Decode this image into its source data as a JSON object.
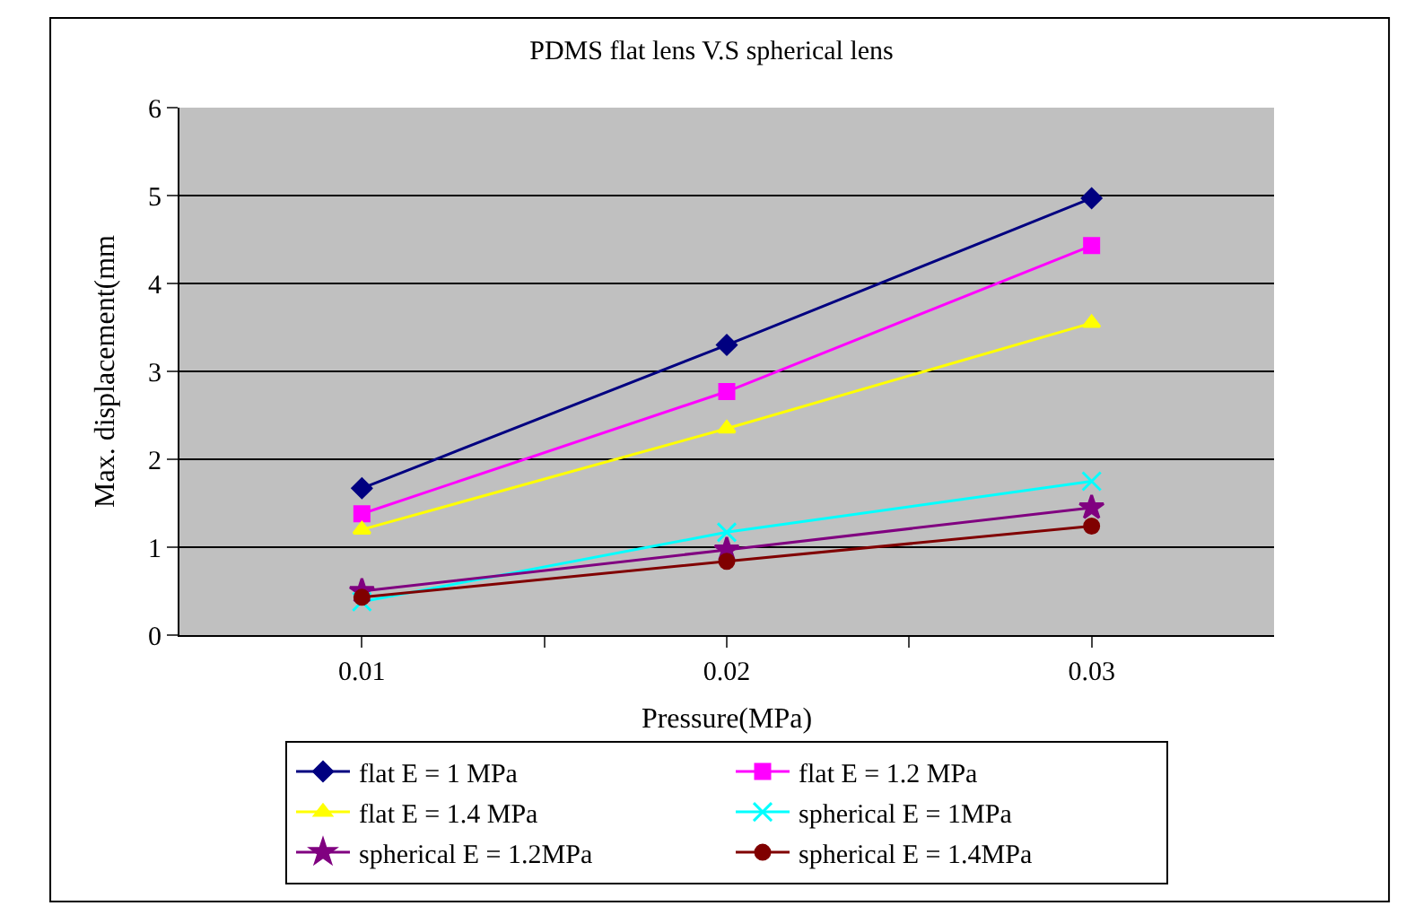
{
  "chart_data": {
    "type": "line",
    "title": "PDMS flat lens V.S spherical lens",
    "xlabel": "Pressure(MPa)",
    "ylabel": "Max. displacement(mm",
    "x": [
      0.01,
      0.02,
      0.03
    ],
    "xlim": [
      0.005,
      0.035
    ],
    "xticks": [
      0.01,
      {
        "value": 0.015,
        "label": null
      },
      0.02,
      {
        "value": 0.025,
        "label": null
      },
      0.03
    ],
    "ylim": [
      0,
      6
    ],
    "yticks": [
      0,
      1,
      2,
      3,
      4,
      5,
      6
    ],
    "grid": "y",
    "legend": "bottom",
    "line_style": "solid",
    "series": [
      {
        "name": "flat E = 1 MPa",
        "color": "#000080",
        "marker": "diamond",
        "values": [
          1.67,
          3.3,
          4.97
        ]
      },
      {
        "name": "flat E = 1.2 MPa",
        "color": "#ff00ff",
        "marker": "square",
        "values": [
          1.38,
          2.77,
          4.43
        ]
      },
      {
        "name": "flat E = 1.4 MPa",
        "color": "#ffff00",
        "marker": "triangle",
        "values": [
          1.2,
          2.35,
          3.55
        ]
      },
      {
        "name": "spherical E = 1MPa",
        "color": "#00ffff",
        "marker": "cross",
        "values": [
          0.38,
          1.17,
          1.75
        ]
      },
      {
        "name": "spherical E = 1.2MPa",
        "color": "#800080",
        "marker": "star",
        "values": [
          0.5,
          0.97,
          1.45
        ]
      },
      {
        "name": "spherical E = 1.4MPa",
        "color": "#800000",
        "marker": "circle",
        "values": [
          0.43,
          0.84,
          1.24
        ]
      }
    ]
  }
}
